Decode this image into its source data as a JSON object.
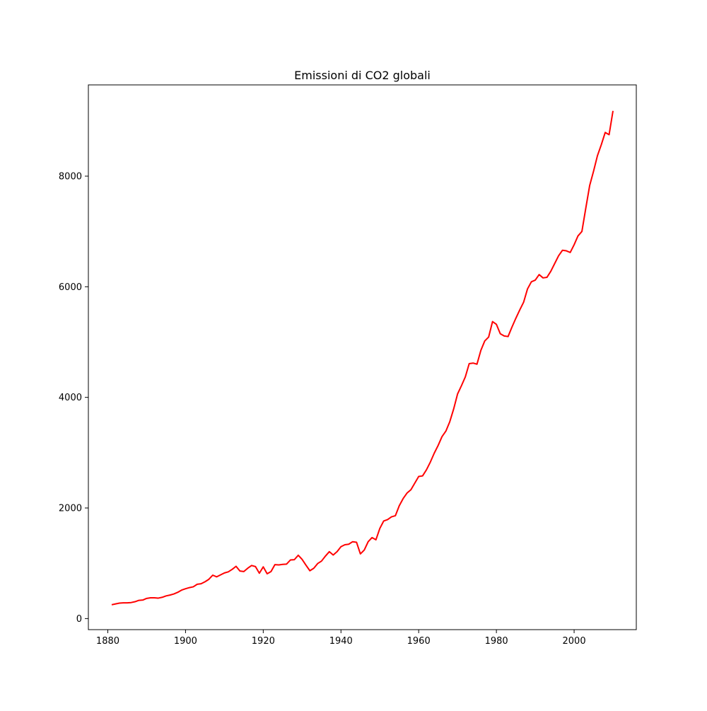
{
  "chart_data": {
    "type": "line",
    "title": "Emissioni di CO2 globali",
    "xlabel": "",
    "ylabel": "",
    "xlim": [
      1875,
      2016
    ],
    "ylim": [
      -200,
      9650
    ],
    "x_ticks": [
      1880,
      1900,
      1920,
      1940,
      1960,
      1980,
      2000
    ],
    "y_ticks": [
      0,
      2000,
      4000,
      6000,
      8000
    ],
    "grid": false,
    "legend": "none",
    "series": [
      {
        "color": "#ff0000",
        "x": [
          1881,
          1882,
          1883,
          1884,
          1885,
          1886,
          1887,
          1888,
          1889,
          1890,
          1891,
          1892,
          1893,
          1894,
          1895,
          1896,
          1897,
          1898,
          1899,
          1900,
          1901,
          1902,
          1903,
          1904,
          1905,
          1906,
          1907,
          1908,
          1909,
          1910,
          1911,
          1912,
          1913,
          1914,
          1915,
          1916,
          1917,
          1918,
          1919,
          1920,
          1921,
          1922,
          1923,
          1924,
          1925,
          1926,
          1927,
          1928,
          1929,
          1930,
          1931,
          1932,
          1933,
          1934,
          1935,
          1936,
          1937,
          1938,
          1939,
          1940,
          1941,
          1942,
          1943,
          1944,
          1945,
          1946,
          1947,
          1948,
          1949,
          1950,
          1951,
          1952,
          1953,
          1954,
          1955,
          1956,
          1957,
          1958,
          1959,
          1960,
          1961,
          1962,
          1963,
          1964,
          1965,
          1966,
          1967,
          1968,
          1969,
          1970,
          1971,
          1972,
          1973,
          1974,
          1975,
          1976,
          1977,
          1978,
          1979,
          1980,
          1981,
          1982,
          1983,
          1984,
          1985,
          1986,
          1987,
          1988,
          1989,
          1990,
          1991,
          1992,
          1993,
          1994,
          1995,
          1996,
          1997,
          1998,
          1999,
          2000,
          2001,
          2002,
          2003,
          2004,
          2005,
          2006,
          2007,
          2008,
          2009,
          2010
        ],
        "y": [
          250,
          265,
          280,
          285,
          285,
          290,
          305,
          330,
          335,
          365,
          375,
          375,
          370,
          385,
          410,
          425,
          445,
          475,
          515,
          540,
          560,
          575,
          620,
          630,
          665,
          710,
          785,
          755,
          790,
          825,
          845,
          890,
          945,
          860,
          850,
          910,
          960,
          940,
          820,
          935,
          810,
          850,
          975,
          970,
          980,
          985,
          1060,
          1065,
          1145,
          1070,
          965,
          865,
          910,
          995,
          1040,
          1130,
          1210,
          1150,
          1210,
          1300,
          1335,
          1345,
          1390,
          1380,
          1170,
          1240,
          1390,
          1465,
          1425,
          1630,
          1765,
          1790,
          1840,
          1860,
          2040,
          2170,
          2270,
          2330,
          2450,
          2570,
          2580,
          2690,
          2830,
          2990,
          3130,
          3290,
          3390,
          3560,
          3790,
          4060,
          4210,
          4370,
          4610,
          4620,
          4600,
          4850,
          5020,
          5090,
          5370,
          5320,
          5150,
          5110,
          5100,
          5270,
          5430,
          5580,
          5720,
          5960,
          6090,
          6120,
          6220,
          6160,
          6170,
          6280,
          6420,
          6560,
          6660,
          6650,
          6620,
          6760,
          6920,
          7000,
          7420,
          7830,
          8090,
          8370,
          8570,
          8790,
          8750,
          9180
        ]
      }
    ]
  }
}
